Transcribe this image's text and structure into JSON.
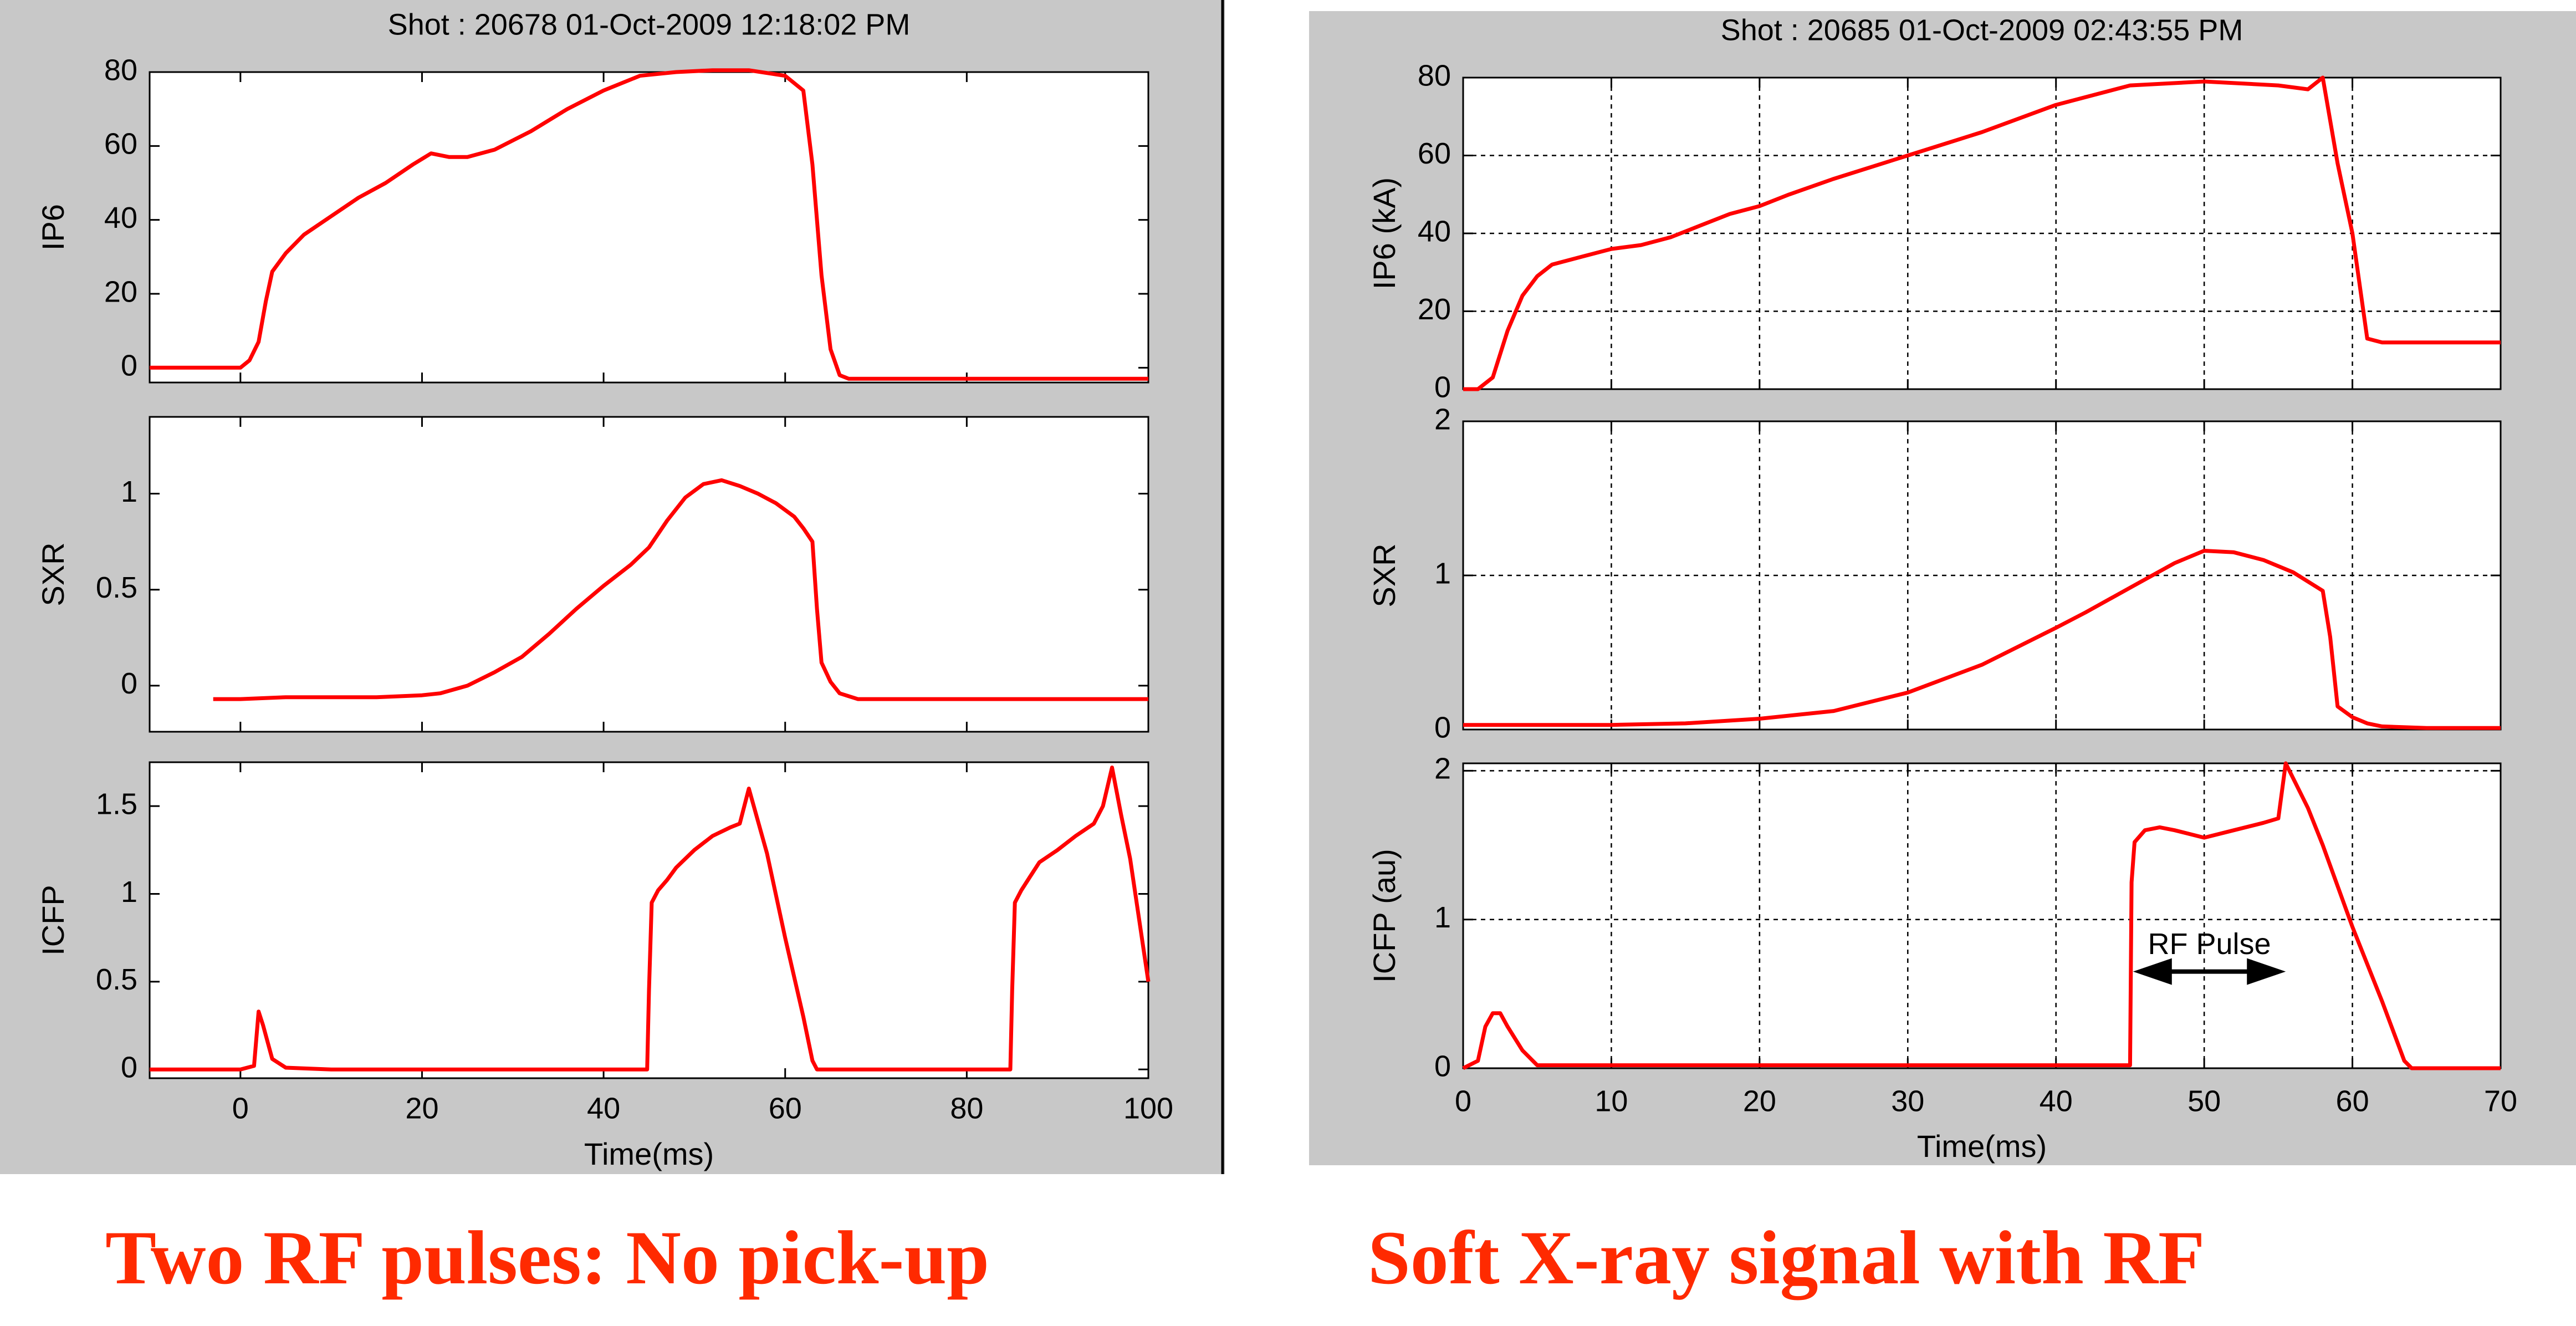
{
  "captions": {
    "left": "Two RF pulses: No pick-up",
    "right": "Soft X-ray signal with RF"
  },
  "colors": {
    "trace": "#ff0000",
    "panel": "#c8c8c8",
    "caption": "#ff2a00",
    "arrow": "#000000"
  },
  "chart_data": [
    {
      "type": "line",
      "title": "Shot :  20678     01-Oct-2009 12:18:02 PM",
      "xlabel": "Time(ms)",
      "xlim": [
        -10,
        100
      ],
      "xticks": [
        0,
        20,
        40,
        60,
        80,
        100
      ],
      "grid": false,
      "subplots": [
        {
          "ylabel": "IP6",
          "ylim": [
            -4,
            80
          ],
          "yticks": [
            0,
            20,
            40,
            60,
            80
          ],
          "series": [
            {
              "x": [
                -10,
                -5,
                0,
                1,
                2,
                2.8,
                3.5,
                5,
                7,
                10,
                13,
                16,
                19,
                21,
                23,
                25,
                28,
                32,
                36,
                40,
                44,
                48,
                52,
                56,
                60,
                62,
                63,
                64,
                65,
                66,
                67,
                70,
                80,
                90,
                100
              ],
              "y": [
                0,
                0,
                0,
                2,
                7,
                18,
                26,
                31,
                36,
                41,
                46,
                50,
                55,
                58,
                57,
                57,
                59,
                64,
                70,
                75,
                79,
                80,
                80.5,
                80.5,
                79,
                75,
                55,
                25,
                5,
                -2,
                -3,
                -3,
                -3,
                -3,
                -3
              ]
            }
          ]
        },
        {
          "ylabel": "SXR",
          "ylim": [
            -0.24,
            1.4
          ],
          "yticks": [
            0,
            0.5,
            1
          ],
          "series": [
            {
              "x": [
                -3,
                0,
                5,
                10,
                15,
                20,
                22,
                25,
                28,
                31,
                34,
                37,
                40,
                43,
                45,
                47,
                49,
                51,
                53,
                55,
                57,
                59,
                61,
                62,
                63,
                63.5,
                64,
                65,
                66,
                68,
                70,
                80,
                90,
                100
              ],
              "y": [
                -0.07,
                -0.07,
                -0.06,
                -0.06,
                -0.06,
                -0.05,
                -0.04,
                0,
                0.07,
                0.15,
                0.27,
                0.4,
                0.52,
                0.63,
                0.72,
                0.86,
                0.98,
                1.05,
                1.07,
                1.04,
                1.0,
                0.95,
                0.88,
                0.82,
                0.75,
                0.4,
                0.12,
                0.02,
                -0.04,
                -0.07,
                -0.07,
                -0.07,
                -0.07,
                -0.07
              ]
            }
          ]
        },
        {
          "ylabel": "ICFP",
          "ylim": [
            -0.05,
            1.75
          ],
          "yticks": [
            0,
            0.5,
            1,
            1.5
          ],
          "series": [
            {
              "x": [
                -10,
                0,
                1.5,
                2,
                2.5,
                3.5,
                5,
                10,
                20,
                30,
                40,
                44.8,
                45,
                45.3,
                46,
                47,
                48,
                50,
                52,
                54,
                55,
                56,
                58,
                60,
                62,
                63,
                63.5,
                65,
                70,
                80,
                84.8,
                85,
                85.3,
                86,
                87,
                88,
                90,
                92,
                94,
                95,
                96,
                97,
                98,
                100
              ],
              "y": [
                0,
                0,
                0.02,
                0.33,
                0.25,
                0.06,
                0.01,
                0,
                0,
                0,
                0,
                0,
                0.45,
                0.95,
                1.02,
                1.08,
                1.15,
                1.25,
                1.33,
                1.38,
                1.4,
                1.6,
                1.23,
                0.75,
                0.3,
                0.05,
                0,
                0,
                0,
                0,
                0,
                0.45,
                0.95,
                1.02,
                1.1,
                1.18,
                1.25,
                1.33,
                1.4,
                1.5,
                1.72,
                1.45,
                1.2,
                0.5
              ]
            }
          ]
        }
      ]
    },
    {
      "type": "line",
      "title": "Shot :  20685     01-Oct-2009 02:43:55 PM",
      "xlabel": "Time(ms)",
      "xlim": [
        0,
        70
      ],
      "xticks": [
        0,
        10,
        20,
        30,
        40,
        50,
        60,
        70
      ],
      "grid": true,
      "annotation": {
        "text": "RF Pulse",
        "from": 45.2,
        "to": 55.5,
        "y": 0.65
      },
      "subplots": [
        {
          "ylabel": "IP6 (kA)",
          "ylim": [
            0,
            80
          ],
          "yticks": [
            0,
            20,
            40,
            60,
            80
          ],
          "series": [
            {
              "x": [
                0,
                1,
                2,
                3,
                4,
                5,
                6,
                8,
                10,
                12,
                14,
                16,
                18,
                20,
                22,
                25,
                30,
                35,
                40,
                45,
                50,
                55,
                57,
                58,
                59,
                60,
                61,
                62,
                65,
                70
              ],
              "y": [
                0,
                0,
                3,
                15,
                24,
                29,
                32,
                34,
                36,
                37,
                39,
                42,
                45,
                47,
                50,
                54,
                60,
                66,
                73,
                78,
                79,
                78,
                77,
                80,
                58,
                40,
                13,
                12,
                12,
                12
              ]
            }
          ]
        },
        {
          "ylabel": "SXR",
          "ylim": [
            0,
            2
          ],
          "yticks": [
            0,
            1,
            2
          ],
          "series": [
            {
              "x": [
                0,
                5,
                10,
                15,
                20,
                25,
                30,
                35,
                40,
                42,
                45,
                48,
                50,
                52,
                54,
                56,
                58,
                58.5,
                59,
                60,
                61,
                62,
                65,
                70
              ],
              "y": [
                0.03,
                0.03,
                0.03,
                0.04,
                0.07,
                0.12,
                0.24,
                0.42,
                0.66,
                0.76,
                0.92,
                1.08,
                1.16,
                1.15,
                1.1,
                1.02,
                0.9,
                0.6,
                0.15,
                0.08,
                0.04,
                0.02,
                0.01,
                0.01
              ]
            }
          ]
        },
        {
          "ylabel": "ICFP (au)",
          "ylim": [
            0,
            2.05
          ],
          "yticks": [
            0,
            1,
            2
          ],
          "series": [
            {
              "x": [
                0,
                1,
                1.5,
                2,
                2.5,
                3,
                4,
                5,
                10,
                20,
                30,
                40,
                45,
                45.1,
                45.3,
                46,
                47,
                48,
                50,
                52,
                54,
                55,
                55.5,
                56,
                57,
                58,
                60,
                62,
                63.5,
                64,
                70
              ],
              "y": [
                0,
                0.05,
                0.28,
                0.37,
                0.37,
                0.28,
                0.12,
                0.02,
                0.02,
                0.02,
                0.02,
                0.02,
                0.02,
                1.25,
                1.52,
                1.6,
                1.62,
                1.6,
                1.55,
                1.6,
                1.65,
                1.68,
                2.05,
                1.95,
                1.75,
                1.5,
                0.95,
                0.45,
                0.05,
                0,
                0
              ]
            }
          ]
        }
      ]
    }
  ]
}
